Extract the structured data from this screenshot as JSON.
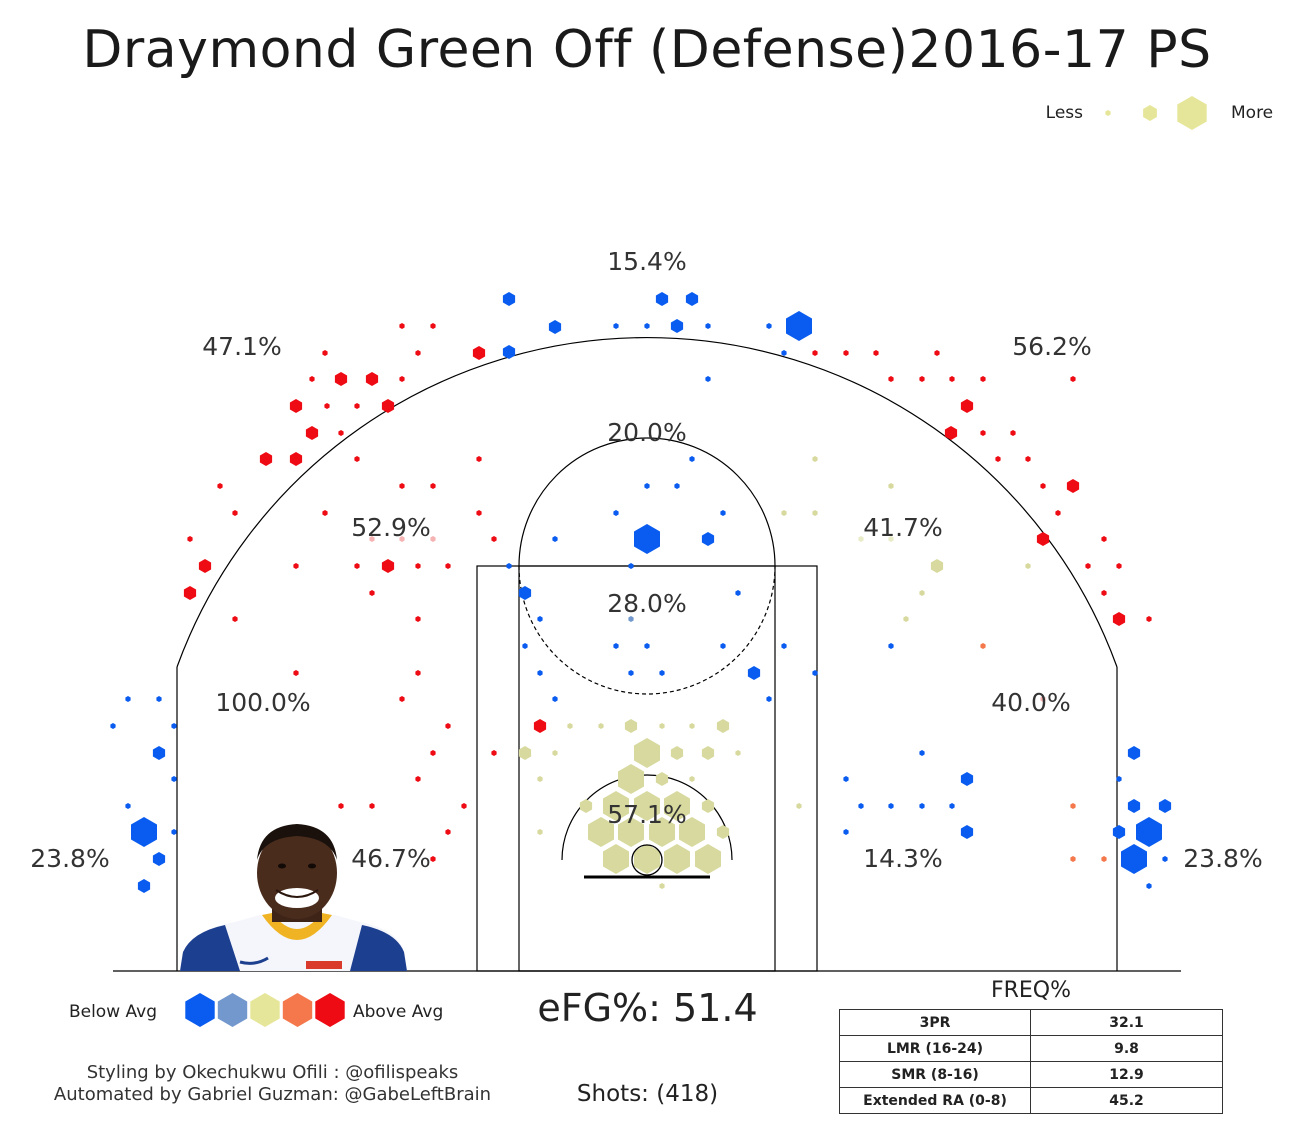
{
  "title": "Draymond Green Off (Defense)2016-17 PS",
  "size_legend": {
    "less": "Less",
    "more": "More"
  },
  "color_legend": {
    "below": "Below Avg",
    "above": "Above Avg",
    "colors": [
      "#0a5cf0",
      "#7398cd",
      "#e6e69a",
      "#f4784b",
      "#ee0b14"
    ]
  },
  "efg": "eFG%: 51.4",
  "shots": "Shots: (418)",
  "credits": {
    "line1": "Styling by Okechukwu Ofili : @ofilispeaks",
    "line2": "Automated by Gabriel Guzman: @GabeLeftBrain"
  },
  "freq_table": {
    "title": "FREQ%",
    "rows": [
      {
        "label": "3PR",
        "value": "32.1"
      },
      {
        "label": "LMR (16-24)",
        "value": "9.8"
      },
      {
        "label": "SMR (8-16)",
        "value": "12.9"
      },
      {
        "label": "Extended RA (0-8)",
        "value": "45.2"
      }
    ]
  },
  "chart_data": {
    "type": "hexbin shot chart",
    "zones": [
      {
        "zone": "top 3",
        "fg_pct": "15.4%"
      },
      {
        "zone": "left wing 3",
        "fg_pct": "47.1%"
      },
      {
        "zone": "right wing 3",
        "fg_pct": "56.2%"
      },
      {
        "zone": "top mid-range",
        "fg_pct": "20.0%"
      },
      {
        "zone": "left elbow mid-range",
        "fg_pct": "52.9%"
      },
      {
        "zone": "right elbow mid-range",
        "fg_pct": "41.7%"
      },
      {
        "zone": "paint (non-RA)",
        "fg_pct": "28.0%"
      },
      {
        "zone": "left baseline long 2",
        "fg_pct": "100.0%"
      },
      {
        "zone": "right baseline long 2",
        "fg_pct": "40.0%"
      },
      {
        "zone": "left short baseline",
        "fg_pct": "46.7%"
      },
      {
        "zone": "restricted area",
        "fg_pct": "57.1%"
      },
      {
        "zone": "right short baseline",
        "fg_pct": "14.3%"
      },
      {
        "zone": "left corner 3",
        "fg_pct": "23.8%"
      },
      {
        "zone": "right corner 3",
        "fg_pct": "23.8%"
      }
    ],
    "color_scale": [
      "below avg",
      "slightly below",
      "average",
      "slightly above",
      "above avg"
    ],
    "size_scale": "hexagon size = shot frequency"
  }
}
